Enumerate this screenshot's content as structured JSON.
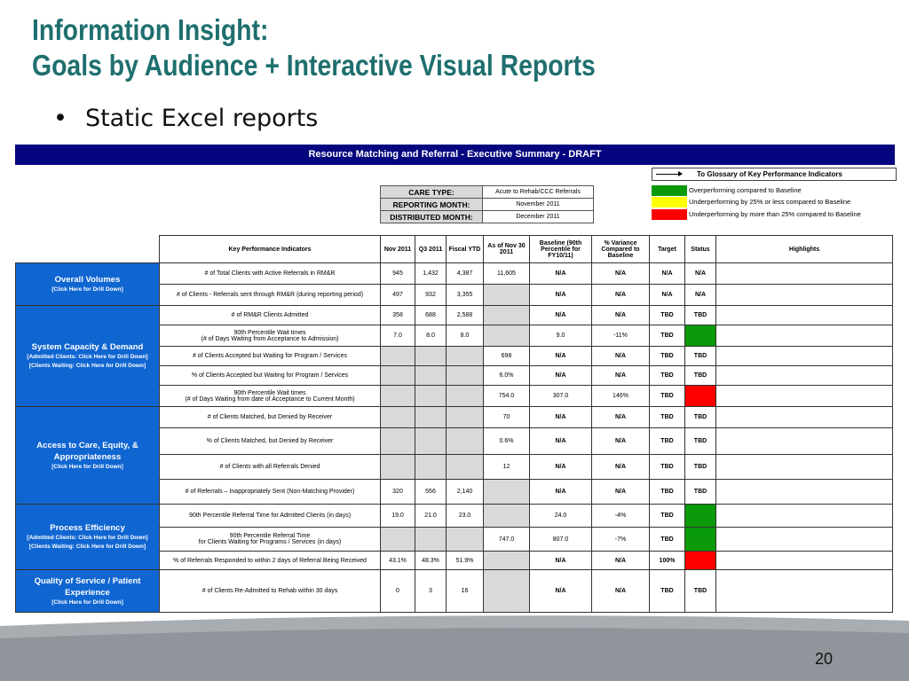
{
  "slide": {
    "title_line1": "Information Insight:",
    "title_line2": "Goals by Audience + Interactive Visual Reports",
    "bullet": "Static Excel reports",
    "page_number": "20"
  },
  "report": {
    "banner": "Resource Matching and Referral - Executive Summary - DRAFT",
    "glossary_link": "To Glossary of Key Performance Indicators",
    "meta": [
      {
        "key": "CARE TYPE:",
        "value": "Acute to Rehab/CCC Referrals"
      },
      {
        "key": "REPORTING MONTH:",
        "value": "November 2011"
      },
      {
        "key": "DISTRIBUTED MONTH:",
        "value": "December 2011"
      }
    ],
    "legend": [
      {
        "color": "#0a9a0a",
        "label": "Overperforming compared to Baseline"
      },
      {
        "color": "#ffff00",
        "label": "Underperforming by 25% or less compared to Baseline"
      },
      {
        "color": "#ff0000",
        "label": "Underperforming by more than 25% compared to Baseline"
      }
    ],
    "headers": {
      "kpi": "Key Performance Indicators",
      "nov": "Nov 2011",
      "q3": "Q3 2011",
      "ytd": "Fiscal YTD",
      "asof": "As of Nov 30 2011",
      "baseline": "Baseline (90th Percentile for FY10/11)",
      "variance": "% Variance Compared to Baseline",
      "target": "Target",
      "status": "Status",
      "highlights": "Highlights"
    },
    "groups": {
      "overall": {
        "title": "Overall Volumes",
        "link": "[Click Here for Drill Down]"
      },
      "capacity": {
        "title": "System Capacity & Demand",
        "link1": "[Admitted Clients: Click Here for Drill Down]",
        "link2": "[Clients Waiting: Click Here for Drill Down]"
      },
      "access": {
        "title": "Access to Care, Equity, & Appropriateness",
        "link": "[Click Here for Drill Down]"
      },
      "process": {
        "title": "Process Efficiency",
        "link1": "[Admitted Clients: Click Here for Drill Down]",
        "link2": "[Clients Waiting: Click Here for Drill Down]"
      },
      "quality": {
        "title": "Quality of Service / Patient Experience",
        "link": "[Click Here for Drill Down]"
      }
    },
    "rows": [
      {
        "kpi": "# of Total Clients with Active Referrals in RM&R",
        "nov": "945",
        "q3": "1,432",
        "ytd": "4,387",
        "asof": "11,605",
        "baseline": "N/A",
        "variance": "N/A",
        "target": "N/A",
        "status": "N/A"
      },
      {
        "kpi": "# of Clients - Referrals sent through RM&R (during reporting period)",
        "nov": "497",
        "q3": "932",
        "ytd": "3,355",
        "asof": "",
        "baseline": "N/A",
        "variance": "N/A",
        "target": "N/A",
        "status": "N/A"
      },
      {
        "kpi": "# of RM&R Clients Admitted",
        "nov": "358",
        "q3": "688",
        "ytd": "2,588",
        "asof": "",
        "baseline": "N/A",
        "variance": "N/A",
        "target": "TBD",
        "status": "TBD"
      },
      {
        "kpi1": "90th Percentile Wait times",
        "kpi2": "(# of Days Waiting from Acceptance to Admission)",
        "nov": "7.0",
        "q3": "8.0",
        "ytd": "8.0",
        "asof": "",
        "baseline": "9.0",
        "variance": "-11%",
        "target": "TBD",
        "status": ""
      },
      {
        "kpi": "# of Clients Accepted but Waiting for Program / Services",
        "nov": "",
        "q3": "",
        "ytd": "",
        "asof": "698",
        "baseline": "N/A",
        "variance": "N/A",
        "target": "TBD",
        "status": "TBD"
      },
      {
        "kpi": "% of Clients Accepted but Waiting for Program / Services",
        "nov": "",
        "q3": "",
        "ytd": "",
        "asof": "6.0%",
        "baseline": "N/A",
        "variance": "N/A",
        "target": "TBD",
        "status": "TBD"
      },
      {
        "kpi1": "90th Percentile Wait times",
        "kpi2": "(# of Days Waiting from date of Acceptance to Current Month)",
        "nov": "",
        "q3": "",
        "ytd": "",
        "asof": "754.0",
        "baseline": "307.0",
        "variance": "146%",
        "target": "TBD",
        "status": ""
      },
      {
        "kpi": "# of Clients Matched, but Denied by Receiver",
        "nov": "",
        "q3": "",
        "ytd": "",
        "asof": "70",
        "baseline": "N/A",
        "variance": "N/A",
        "target": "TBD",
        "status": "TBD"
      },
      {
        "kpi": "% of Clients Matched, but Denied by Receiver",
        "nov": "",
        "q3": "",
        "ytd": "",
        "asof": "0.6%",
        "baseline": "N/A",
        "variance": "N/A",
        "target": "TBD",
        "status": "TBD"
      },
      {
        "kpi": "# of Clients with all Referrals Denied",
        "nov": "",
        "q3": "",
        "ytd": "",
        "asof": "12",
        "baseline": "N/A",
        "variance": "N/A",
        "target": "TBD",
        "status": "TBD"
      },
      {
        "kpi": "# of Referrals – Inappropriately Sent (Non-Matching Provider)",
        "nov": "320",
        "q3": "556",
        "ytd": "2,140",
        "asof": "",
        "baseline": "N/A",
        "variance": "N/A",
        "target": "TBD",
        "status": "TBD"
      },
      {
        "kpi": "90th Percentile Referral Time for Admitted Clients (in days)",
        "nov": "19.0",
        "q3": "21.0",
        "ytd": "23.0",
        "asof": "",
        "baseline": "24.0",
        "variance": "-4%",
        "target": "TBD",
        "status": ""
      },
      {
        "kpi1": "90th Percentile Referral Time",
        "kpi2": "for Clients Waiting for Programs / Services (in days)",
        "nov": "",
        "q3": "",
        "ytd": "",
        "asof": "747.0",
        "baseline": "807.0",
        "variance": "-7%",
        "target": "TBD",
        "status": ""
      },
      {
        "kpi": "% of Referrals Responded to within 2 days of Referral Being Received",
        "nov": "43.1%",
        "q3": "48.3%",
        "ytd": "51.9%",
        "asof": "",
        "baseline": "N/A",
        "variance": "N/A",
        "target": "100%",
        "status": ""
      },
      {
        "kpi": "# of Clients Re-Admitted to Rehab within 30 days",
        "nov": "0",
        "q3": "3",
        "ytd": "16",
        "asof": "",
        "baseline": "N/A",
        "variance": "N/A",
        "target": "TBD",
        "status": "TBD"
      }
    ],
    "status_colors": {
      "green": "#0a9a0a",
      "red": "#ff0000",
      "yellow": "#ffff00",
      "group_blue": "#1066d1",
      "banner_navy": "#050580"
    }
  }
}
